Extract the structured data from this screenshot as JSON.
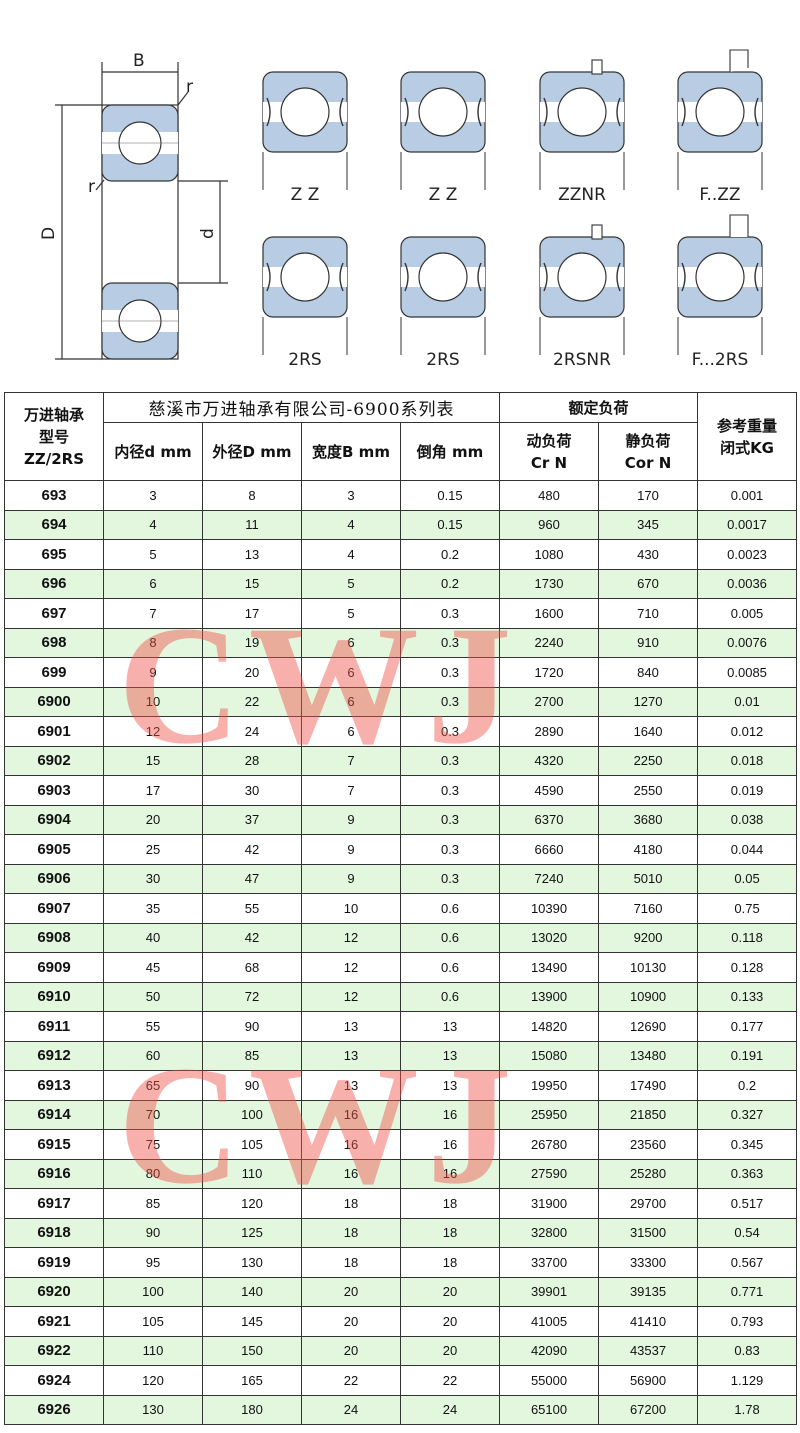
{
  "diagram": {
    "dim_labels": {
      "width": "B",
      "radius_top": "r",
      "radius_side": "r",
      "outer_diameter": "D",
      "inner_diameter": "d"
    },
    "variants": [
      "Z Z",
      "Z Z",
      "ZZNR",
      "F..ZZ",
      "2RS",
      "2RS",
      "2RSNR",
      "F...2RS"
    ]
  },
  "table": {
    "title": "慈溪市万进轴承有限公司-6900系列表",
    "col_model": [
      "万进轴承",
      "型号",
      "ZZ/2RS"
    ],
    "col_inner": "内径d mm",
    "col_outer": "外径D mm",
    "col_width": "宽度B mm",
    "col_chamfer": "倒角 mm",
    "rated_load": "额定负荷",
    "col_dynamic": [
      "动负荷",
      "Cr N"
    ],
    "col_static": [
      "静负荷",
      "Cor N"
    ],
    "col_weight": [
      "参考重量",
      "闭式KG"
    ],
    "rows": [
      [
        "693",
        "3",
        "8",
        "3",
        "0.15",
        "480",
        "170",
        "0.001"
      ],
      [
        "694",
        "4",
        "11",
        "4",
        "0.15",
        "960",
        "345",
        "0.0017"
      ],
      [
        "695",
        "5",
        "13",
        "4",
        "0.2",
        "1080",
        "430",
        "0.0023"
      ],
      [
        "696",
        "6",
        "15",
        "5",
        "0.2",
        "1730",
        "670",
        "0.0036"
      ],
      [
        "697",
        "7",
        "17",
        "5",
        "0.3",
        "1600",
        "710",
        "0.005"
      ],
      [
        "698",
        "8",
        "19",
        "6",
        "0.3",
        "2240",
        "910",
        "0.0076"
      ],
      [
        "699",
        "9",
        "20",
        "6",
        "0.3",
        "1720",
        "840",
        "0.0085"
      ],
      [
        "6900",
        "10",
        "22",
        "6",
        "0.3",
        "2700",
        "1270",
        "0.01"
      ],
      [
        "6901",
        "12",
        "24",
        "6",
        "0.3",
        "2890",
        "1640",
        "0.012"
      ],
      [
        "6902",
        "15",
        "28",
        "7",
        "0.3",
        "4320",
        "2250",
        "0.018"
      ],
      [
        "6903",
        "17",
        "30",
        "7",
        "0.3",
        "4590",
        "2550",
        "0.019"
      ],
      [
        "6904",
        "20",
        "37",
        "9",
        "0.3",
        "6370",
        "3680",
        "0.038"
      ],
      [
        "6905",
        "25",
        "42",
        "9",
        "0.3",
        "6660",
        "4180",
        "0.044"
      ],
      [
        "6906",
        "30",
        "47",
        "9",
        "0.3",
        "7240",
        "5010",
        "0.05"
      ],
      [
        "6907",
        "35",
        "55",
        "10",
        "0.6",
        "10390",
        "7160",
        "0.75"
      ],
      [
        "6908",
        "40",
        "42",
        "12",
        "0.6",
        "13020",
        "9200",
        "0.118"
      ],
      [
        "6909",
        "45",
        "68",
        "12",
        "0.6",
        "13490",
        "10130",
        "0.128"
      ],
      [
        "6910",
        "50",
        "72",
        "12",
        "0.6",
        "13900",
        "10900",
        "0.133"
      ],
      [
        "6911",
        "55",
        "90",
        "13",
        "13",
        "14820",
        "12690",
        "0.177"
      ],
      [
        "6912",
        "60",
        "85",
        "13",
        "13",
        "15080",
        "13480",
        "0.191"
      ],
      [
        "6913",
        "65",
        "90",
        "13",
        "13",
        "19950",
        "17490",
        "0.2"
      ],
      [
        "6914",
        "70",
        "100",
        "16",
        "16",
        "25950",
        "21850",
        "0.327"
      ],
      [
        "6915",
        "75",
        "105",
        "16",
        "16",
        "26780",
        "23560",
        "0.345"
      ],
      [
        "6916",
        "80",
        "110",
        "16",
        "16",
        "27590",
        "25280",
        "0.363"
      ],
      [
        "6917",
        "85",
        "120",
        "18",
        "18",
        "31900",
        "29700",
        "0.517"
      ],
      [
        "6918",
        "90",
        "125",
        "18",
        "18",
        "32800",
        "31500",
        "0.54"
      ],
      [
        "6919",
        "95",
        "130",
        "18",
        "18",
        "33700",
        "33300",
        "0.567"
      ],
      [
        "6920",
        "100",
        "140",
        "20",
        "20",
        "39901",
        "39135",
        "0.771"
      ],
      [
        "6921",
        "105",
        "145",
        "20",
        "20",
        "41005",
        "41410",
        "0.793"
      ],
      [
        "6922",
        "110",
        "150",
        "20",
        "20",
        "42090",
        "43537",
        "0.83"
      ],
      [
        "6924",
        "120",
        "165",
        "22",
        "22",
        "55000",
        "56900",
        "1.129"
      ],
      [
        "6926",
        "130",
        "180",
        "24",
        "24",
        "65100",
        "67200",
        "1.78"
      ]
    ]
  },
  "watermark": "CWJ",
  "colors": {
    "ring_fill": "#b8cce4",
    "alt_row": "#e3f7df",
    "watermark": "#f05046"
  }
}
